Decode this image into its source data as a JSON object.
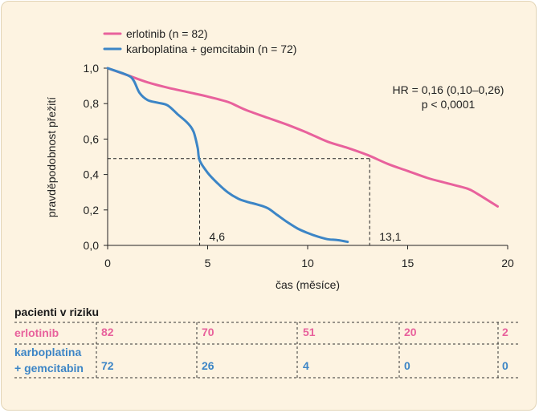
{
  "colors": {
    "erlotinib": "#e8619c",
    "karboplatina": "#3c85c6",
    "axis": "#222222",
    "frame_bg": "#fdf3e1"
  },
  "chart_data": {
    "type": "line",
    "xlabel": "čas (měsíce)",
    "ylabel": "pravděpodobnost přežití",
    "xlim": [
      0,
      20
    ],
    "ylim": [
      0,
      1.0
    ],
    "x_ticks": [
      "0",
      "5",
      "10",
      "15",
      "20"
    ],
    "y_ticks": [
      "0,0",
      "0,2",
      "0,4",
      "0,6",
      "0,8",
      "1,0"
    ],
    "series": [
      {
        "name": "erlotinib (n = 82)",
        "color": "#e8619c",
        "x": [
          0,
          1,
          2,
          3,
          4,
          5,
          6,
          6.5,
          7,
          8,
          9,
          10,
          11,
          12,
          13,
          14,
          15,
          16,
          17,
          18,
          18.5,
          19.5
        ],
        "y": [
          1.0,
          0.96,
          0.92,
          0.89,
          0.865,
          0.84,
          0.81,
          0.785,
          0.76,
          0.72,
          0.68,
          0.635,
          0.585,
          0.55,
          0.51,
          0.46,
          0.42,
          0.38,
          0.35,
          0.32,
          0.29,
          0.22
        ]
      },
      {
        "name": "karboplatina + gemcitabin (n = 72)",
        "color": "#3c85c6",
        "x": [
          0,
          1,
          1.3,
          1.6,
          2,
          2.5,
          3,
          3.5,
          4,
          4.3,
          4.5,
          4.6,
          5,
          5.5,
          6,
          6.5,
          7,
          7.5,
          8,
          8.5,
          9,
          9.5,
          10,
          10.5,
          11,
          11.5,
          12
        ],
        "y": [
          1.0,
          0.96,
          0.93,
          0.86,
          0.82,
          0.805,
          0.79,
          0.74,
          0.69,
          0.64,
          0.55,
          0.48,
          0.41,
          0.35,
          0.3,
          0.265,
          0.245,
          0.23,
          0.21,
          0.17,
          0.13,
          0.095,
          0.07,
          0.05,
          0.035,
          0.03,
          0.02
        ]
      }
    ],
    "median_line_y": 0.49,
    "medians": [
      {
        "x": 4.6,
        "label": "4,6"
      },
      {
        "x": 13.1,
        "label": "13,1"
      }
    ],
    "annotation": {
      "line1": "HR = 0,16 (0,10–0,26)",
      "line2": "p < 0,0001"
    },
    "legend_position": "top-left"
  },
  "risk_table": {
    "title": "pacienti v riziku",
    "rows": [
      {
        "label_lines": [
          "erlotinib"
        ],
        "color": "#e8619c",
        "values": [
          "82",
          "70",
          "51",
          "20",
          "2"
        ]
      },
      {
        "label_lines": [
          "karboplatina",
          "+ gemcitabin"
        ],
        "color": "#3c85c6",
        "values": [
          "72",
          "26",
          "4",
          "0",
          "0"
        ]
      }
    ]
  }
}
